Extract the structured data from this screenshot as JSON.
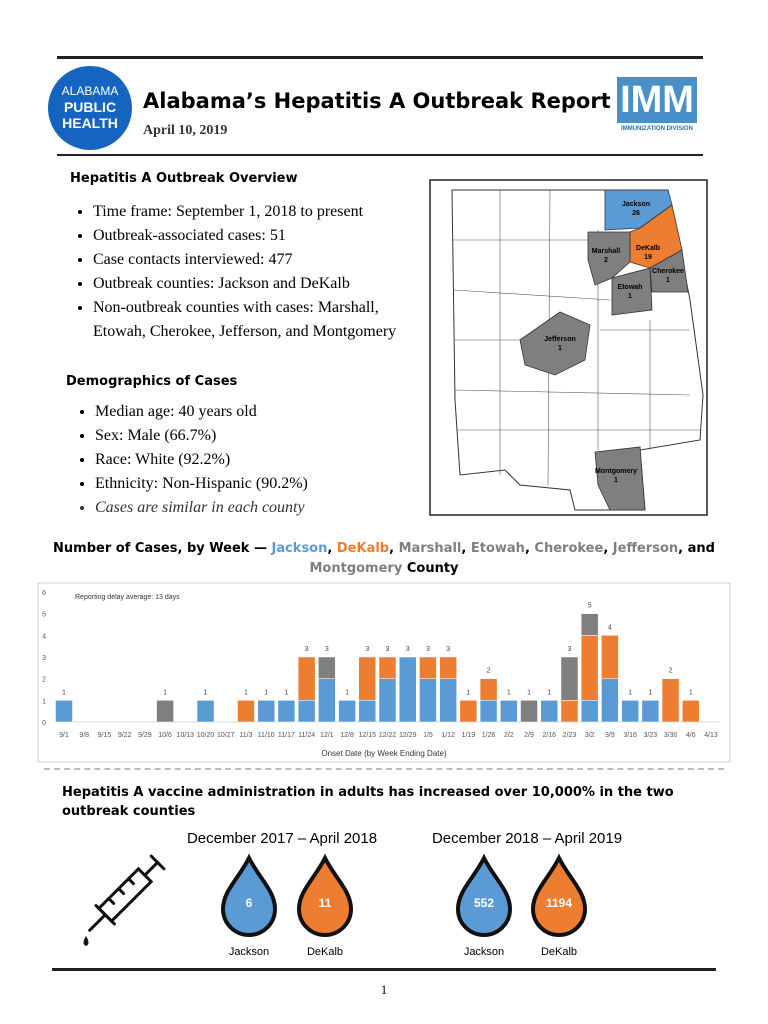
{
  "header": {
    "logo_lines": [
      "ALABAMA",
      "PUBLIC",
      "HEALTH"
    ],
    "title": "Alabama’s Hepatitis A Outbreak Report",
    "date": "April 10, 2019",
    "imm_logo": "IMM",
    "imm_subtitle": "IMMUNIZATION DIVISION"
  },
  "overview": {
    "heading": "Hepatitis A Outbreak Overview",
    "items": [
      "Time frame: September 1, 2018 to present",
      "Outbreak-associated cases: 51",
      "Case contacts interviewed: 477",
      "Outbreak counties: Jackson and DeKalb",
      "Non-outbreak counties with cases: Marshall, Etowah, Cherokee, Jefferson, and Montgomery"
    ]
  },
  "demographics": {
    "heading": "Demographics of Cases",
    "items": [
      "Median age: 40 years old",
      "Sex: Male (66.7%)",
      "Race: White (92.2%)",
      "Ethnicity: Non-Hispanic (90.2%)",
      "Cases are similar in each county"
    ]
  },
  "map": {
    "counties": [
      {
        "name": "Jackson",
        "count": 26
      },
      {
        "name": "DeKalb",
        "count": 19
      },
      {
        "name": "Marshall",
        "count": 2
      },
      {
        "name": "Etowah",
        "count": 1
      },
      {
        "name": "Cherokee",
        "count": 1
      },
      {
        "name": "Jefferson",
        "count": 1
      },
      {
        "name": "Montgomery",
        "count": 1
      }
    ]
  },
  "chart_data": {
    "type": "stacked-bar",
    "title_lead": "Number of Cases, by Week —",
    "title_separators": [
      ",",
      ",",
      ",",
      ",",
      ",",
      ", and"
    ],
    "title_tail": "County",
    "annotation": "Reporting delay average: 13 days",
    "x_label": "Onset Date (by Week Ending Date)",
    "categories": [
      "9/1",
      "9/8",
      "9/15",
      "9/22",
      "9/29",
      "10/6",
      "10/13",
      "10/20",
      "10/27",
      "11/3",
      "11/10",
      "11/17",
      "11/24",
      "12/1",
      "12/8",
      "12/15",
      "12/22",
      "12/29",
      "1/5",
      "1/12",
      "1/19",
      "1/26",
      "2/2",
      "2/9",
      "2/16",
      "2/23",
      "3/2",
      "3/9",
      "3/16",
      "3/23",
      "3/30",
      "4/6",
      "4/13"
    ],
    "series": [
      {
        "name": "Jackson",
        "color": "#5b9bd5",
        "values": [
          1,
          0,
          0,
          0,
          0,
          0,
          0,
          1,
          0,
          0,
          1,
          1,
          1,
          2,
          1,
          1,
          2,
          3,
          2,
          2,
          0,
          1,
          1,
          0,
          1,
          0,
          1,
          2,
          1,
          1,
          0,
          0,
          0
        ]
      },
      {
        "name": "DeKalb",
        "color": "#ed7d31",
        "values": [
          0,
          0,
          0,
          0,
          0,
          0,
          0,
          0,
          0,
          1,
          0,
          0,
          2,
          0,
          0,
          2,
          1,
          0,
          1,
          1,
          1,
          1,
          0,
          0,
          0,
          1,
          3,
          2,
          0,
          0,
          2,
          1,
          0
        ]
      },
      {
        "name": "Marshall",
        "color": "#7f7f7f",
        "values": [
          0,
          0,
          0,
          0,
          0,
          0,
          0,
          0,
          0,
          0,
          0,
          0,
          0,
          0,
          0,
          0,
          0,
          0,
          0,
          0,
          0,
          0,
          0,
          0,
          0,
          2,
          0,
          0,
          0,
          0,
          0,
          0,
          0
        ]
      },
      {
        "name": "Etowah",
        "color": "#7f7f7f",
        "values": [
          0,
          0,
          0,
          0,
          0,
          1,
          0,
          0,
          0,
          0,
          0,
          0,
          0,
          0,
          0,
          0,
          0,
          0,
          0,
          0,
          0,
          0,
          0,
          0,
          0,
          0,
          0,
          0,
          0,
          0,
          0,
          0,
          0
        ]
      },
      {
        "name": "Cherokee",
        "color": "#7f7f7f",
        "values": [
          0,
          0,
          0,
          0,
          0,
          0,
          0,
          0,
          0,
          0,
          0,
          0,
          0,
          1,
          0,
          0,
          0,
          0,
          0,
          0,
          0,
          0,
          0,
          0,
          0,
          0,
          0,
          0,
          0,
          0,
          0,
          0,
          0
        ]
      },
      {
        "name": "Jefferson",
        "color": "#7f7f7f",
        "values": [
          0,
          0,
          0,
          0,
          0,
          0,
          0,
          0,
          0,
          0,
          0,
          0,
          0,
          0,
          0,
          0,
          0,
          0,
          0,
          0,
          0,
          0,
          0,
          1,
          0,
          0,
          0,
          0,
          0,
          0,
          0,
          0,
          0
        ]
      },
      {
        "name": "Montgomery",
        "color": "#7f7f7f",
        "values": [
          0,
          0,
          0,
          0,
          0,
          0,
          0,
          0,
          0,
          0,
          0,
          0,
          0,
          0,
          0,
          0,
          0,
          0,
          0,
          0,
          0,
          0,
          0,
          0,
          0,
          0,
          1,
          0,
          0,
          0,
          0,
          0,
          0
        ]
      }
    ],
    "total_labels": [
      1,
      null,
      null,
      null,
      null,
      1,
      null,
      1,
      null,
      1,
      1,
      1,
      3,
      3,
      1,
      3,
      3,
      3,
      3,
      3,
      1,
      2,
      1,
      1,
      1,
      3,
      5,
      4,
      1,
      1,
      2,
      1,
      null
    ],
    "ylim": [
      0,
      6
    ],
    "yticks": [
      0,
      1,
      2,
      3,
      4,
      5,
      6
    ],
    "grid": false
  },
  "vaccine": {
    "heading": "Hepatitis A vaccine administration in adults has increased over 10,000% in the two outbreak counties",
    "periods": [
      {
        "label": "December 2017 – April 2018",
        "counties": [
          {
            "name": "Jackson",
            "doses": 6,
            "color": "#5b9bd5"
          },
          {
            "name": "DeKalb",
            "doses": 11,
            "color": "#ed7d31"
          }
        ]
      },
      {
        "label": "December 2018 – April 2019",
        "counties": [
          {
            "name": "Jackson",
            "doses": 552,
            "color": "#5b9bd5"
          },
          {
            "name": "DeKalb",
            "doses": 1194,
            "color": "#ed7d31"
          }
        ]
      }
    ]
  },
  "footer": {
    "page": 1
  }
}
